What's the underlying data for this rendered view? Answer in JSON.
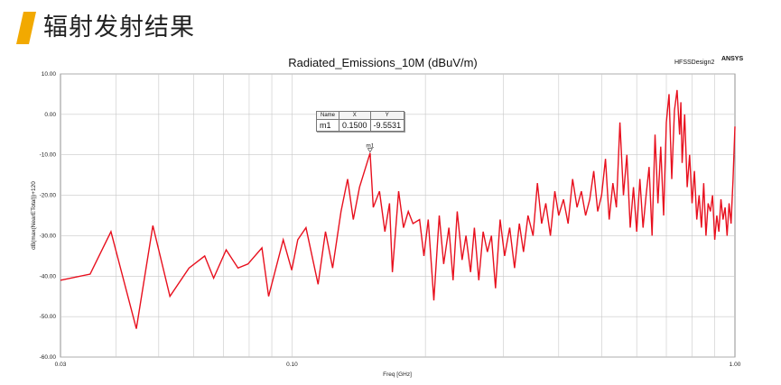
{
  "slide": {
    "title": "辐射发射结果",
    "accent_color": "#f2a900"
  },
  "brand": {
    "design": "HFSSDesign2",
    "vendor": "ANSYS"
  },
  "marker": {
    "headers": [
      "Name",
      "X",
      "Y"
    ],
    "name": "m1",
    "x": "0.1500",
    "y": "-9.5531",
    "label": "m1"
  },
  "chart_data": {
    "type": "line",
    "title": "Radiated_Emissions_10M (dBuV/m)",
    "xlabel": "Freq [GHz]",
    "ylabel": "dB(max(NearETotal))+120",
    "x_scale": "log",
    "xlim": [
      0.03,
      1.0
    ],
    "ylim": [
      -60,
      10
    ],
    "grid": true,
    "x_ticks": [
      0.03,
      0.1,
      1.0
    ],
    "x_tick_labels": [
      "0.03",
      "0.10",
      "1.00"
    ],
    "y_ticks": [
      10,
      0,
      -10,
      -20,
      -30,
      -40,
      -50,
      -60
    ],
    "y_tick_labels": [
      "10.00",
      "0.00",
      "-10.00",
      "-20.00",
      "-30.00",
      "-40.00",
      "-50.00",
      "-60.00"
    ],
    "series": [
      {
        "name": "",
        "color": "#e8101e",
        "x": [
          0.03,
          0.035,
          0.039,
          0.0445,
          0.0485,
          0.053,
          0.0585,
          0.0635,
          0.0665,
          0.071,
          0.0755,
          0.0795,
          0.0855,
          0.0885,
          0.0955,
          0.0998,
          0.103,
          0.1075,
          0.1145,
          0.119,
          0.1235,
          0.129,
          0.1335,
          0.1375,
          0.142,
          0.15,
          0.1525,
          0.1575,
          0.162,
          0.166,
          0.1685,
          0.174,
          0.1785,
          0.183,
          0.1875,
          0.194,
          0.1985,
          0.203,
          0.209,
          0.215,
          0.22,
          0.226,
          0.231,
          0.236,
          0.242,
          0.247,
          0.253,
          0.258,
          0.264,
          0.27,
          0.276,
          0.282,
          0.288,
          0.295,
          0.302,
          0.31,
          0.318,
          0.326,
          0.333,
          0.341,
          0.35,
          0.358,
          0.366,
          0.374,
          0.383,
          0.392,
          0.4,
          0.41,
          0.42,
          0.43,
          0.44,
          0.45,
          0.46,
          0.47,
          0.48,
          0.49,
          0.5,
          0.51,
          0.52,
          0.53,
          0.54,
          0.55,
          0.56,
          0.57,
          0.58,
          0.59,
          0.6,
          0.61,
          0.62,
          0.63,
          0.64,
          0.65,
          0.66,
          0.67,
          0.68,
          0.69,
          0.7,
          0.71,
          0.72,
          0.73,
          0.74,
          0.75,
          0.755,
          0.76,
          0.77,
          0.78,
          0.79,
          0.8,
          0.81,
          0.82,
          0.83,
          0.84,
          0.85,
          0.86,
          0.87,
          0.88,
          0.89,
          0.9,
          0.91,
          0.92,
          0.93,
          0.94,
          0.95,
          0.96,
          0.97,
          0.98,
          0.99,
          1.0
        ],
        "y": [
          -41,
          -39.5,
          -29,
          -53,
          -27.5,
          -45,
          -38,
          -35,
          -40.5,
          -33.5,
          -38,
          -37,
          -33,
          -45,
          -31,
          -38.5,
          -31,
          -28,
          -42,
          -29,
          -38,
          -24,
          -16,
          -26,
          -18,
          -9.55,
          -23,
          -19,
          -29,
          -22,
          -39,
          -19,
          -28,
          -24,
          -27,
          -26,
          -35,
          -26,
          -46,
          -25,
          -37,
          -28,
          -41,
          -24,
          -36,
          -30,
          -39,
          -28,
          -41,
          -29,
          -34,
          -30,
          -43,
          -26,
          -35,
          -28,
          -38,
          -27,
          -34,
          -25,
          -30,
          -17,
          -27,
          -22,
          -30,
          -19,
          -25,
          -21,
          -27,
          -16,
          -23,
          -19,
          -25,
          -21,
          -14,
          -24,
          -20,
          -11,
          -26,
          -17,
          -23,
          -2,
          -20,
          -10,
          -28,
          -18,
          -29,
          -16,
          -28,
          -20,
          -13,
          -30,
          -5,
          -22,
          -8,
          -25,
          -2,
          5,
          -16,
          1,
          6,
          -5,
          3,
          -12,
          0,
          -18,
          -10,
          -22,
          -14,
          -26,
          -20,
          -28,
          -17,
          -30,
          -22,
          -24,
          -20,
          -31,
          -25,
          -29,
          -21,
          -26,
          -23,
          -30,
          -22,
          -27,
          -16,
          -3
        ]
      }
    ]
  }
}
